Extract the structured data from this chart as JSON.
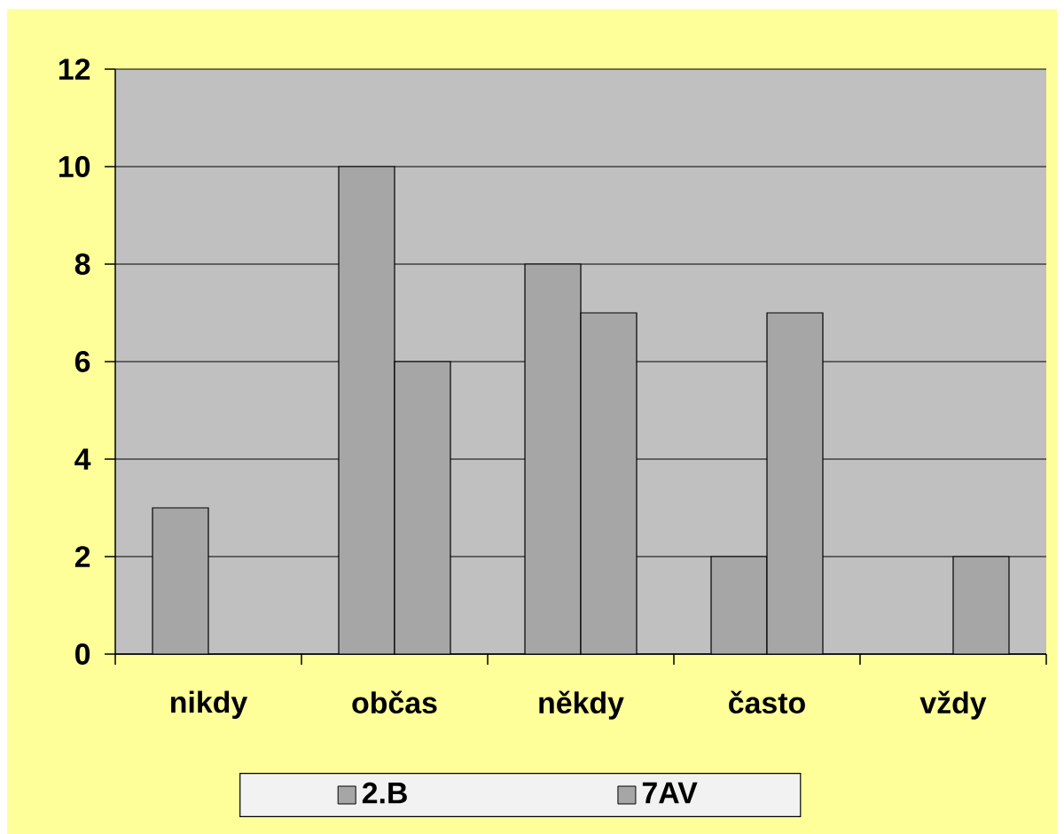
{
  "chart_data": {
    "type": "bar",
    "categories": [
      "nikdy",
      "občas",
      "někdy",
      "často",
      "vždy"
    ],
    "series": [
      {
        "name": "2.B",
        "color": "#a6a6a6",
        "values": [
          3,
          10,
          8,
          2,
          null
        ]
      },
      {
        "name": "7AV",
        "color": "#a6a6a6",
        "values": [
          null,
          6,
          7,
          7,
          2
        ]
      }
    ],
    "ylim": [
      0,
      12
    ],
    "yticks": [
      0,
      2,
      4,
      6,
      8,
      10,
      12
    ],
    "grid": "y",
    "legend": "bottom"
  }
}
